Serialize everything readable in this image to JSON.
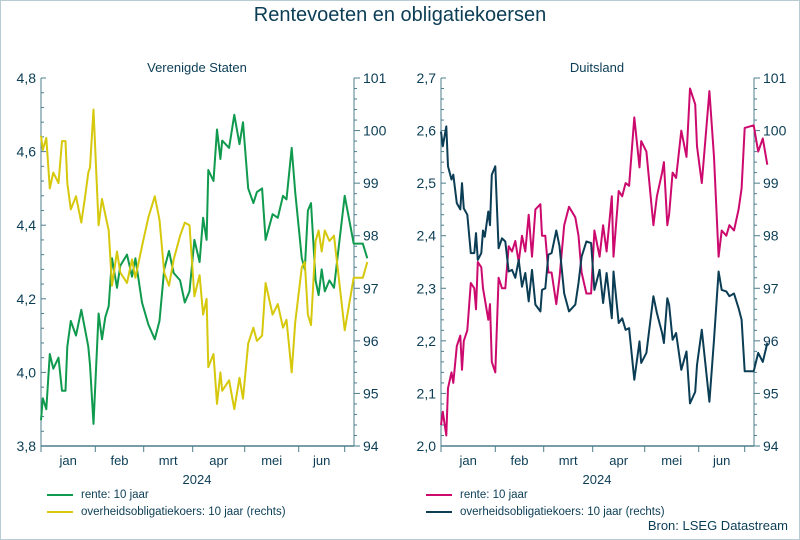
{
  "title": "Rentevoeten en obligatiekoersen",
  "source": "Bron: LSEG Datastream",
  "colors": {
    "us_rate": "#0f9a4e",
    "us_bond": "#d6c80c",
    "de_rate": "#cc0a6e",
    "de_bond": "#0b3d55",
    "axis": "#4d7d8c"
  },
  "chart_data": [
    {
      "type": "line",
      "title": "Verenigde Staten",
      "x_tick_labels": [
        "jan",
        "feb",
        "mrt",
        "apr",
        "mei",
        "jun"
      ],
      "x_year_label": "2024",
      "ylim_left": [
        3.8,
        4.8
      ],
      "yticks_left": [
        "3,8",
        "4,0",
        "4,2",
        "4,4",
        "4,6",
        "4,8"
      ],
      "ylim_right": [
        94,
        101
      ],
      "yticks_right": [
        "94",
        "95",
        "96",
        "97",
        "98",
        "99",
        "100",
        "101"
      ],
      "grid": false,
      "legend_position": "bottom-left",
      "x": [
        "2024-01-01",
        "2024-01-02",
        "2024-01-04",
        "2024-01-06",
        "2024-01-08",
        "2024-01-11",
        "2024-01-13",
        "2024-01-15",
        "2024-01-16",
        "2024-01-18",
        "2024-01-21",
        "2024-01-24",
        "2024-01-26",
        "2024-01-28",
        "2024-01-29",
        "2024-01-31",
        "2024-02-03",
        "2024-02-05",
        "2024-02-07",
        "2024-02-09",
        "2024-02-11",
        "2024-02-14",
        "2024-02-16",
        "2024-02-20",
        "2024-02-23",
        "2024-02-25",
        "2024-02-29",
        "2024-03-04",
        "2024-03-08",
        "2024-03-11",
        "2024-03-14",
        "2024-03-17",
        "2024-03-20",
        "2024-03-24",
        "2024-03-27",
        "2024-03-30",
        "2024-04-02",
        "2024-04-05",
        "2024-04-07",
        "2024-04-09",
        "2024-04-10",
        "2024-04-13",
        "2024-04-15",
        "2024-04-17",
        "2024-04-18",
        "2024-04-22",
        "2024-04-25",
        "2024-04-28",
        "2024-04-30",
        "2024-05-03",
        "2024-05-06",
        "2024-05-08",
        "2024-05-11",
        "2024-05-13",
        "2024-05-17",
        "2024-05-20",
        "2024-05-23",
        "2024-05-25",
        "2024-05-28",
        "2024-05-30",
        "2024-06-03",
        "2024-06-05",
        "2024-06-07",
        "2024-06-09",
        "2024-06-12",
        "2024-06-14",
        "2024-06-16",
        "2024-06-18",
        "2024-06-21",
        "2024-06-24",
        "2024-06-26",
        "2024-07-01",
        "2024-07-03",
        "2024-07-05",
        "2024-07-06"
      ],
      "series": [
        {
          "name": "rente: 10 jaar",
          "axis": "left",
          "color_key": "us_rate",
          "values": [
            3.87,
            3.93,
            3.9,
            4.05,
            4.01,
            4.04,
            3.95,
            3.95,
            4.07,
            4.14,
            4.1,
            4.17,
            4.12,
            4.07,
            4.02,
            3.86,
            4.16,
            4.09,
            4.15,
            4.18,
            4.31,
            4.23,
            4.29,
            4.32,
            4.26,
            4.31,
            4.19,
            4.13,
            4.09,
            4.14,
            4.28,
            4.33,
            4.27,
            4.25,
            4.19,
            4.22,
            4.36,
            4.3,
            4.42,
            4.36,
            4.55,
            4.52,
            4.66,
            4.58,
            4.63,
            4.61,
            4.7,
            4.62,
            4.68,
            4.5,
            4.46,
            4.49,
            4.5,
            4.36,
            4.43,
            4.42,
            4.48,
            4.47,
            4.61,
            4.49,
            4.31,
            4.28,
            4.44,
            4.46,
            4.25,
            4.21,
            4.28,
            4.22,
            4.25,
            4.23,
            4.3,
            4.48,
            4.35,
            4.35,
            4.31
          ]
        },
        {
          "name": "overheidsobligatiekoers: 10 jaar (rechts)",
          "axis": "right",
          "color_key": "us_bond",
          "values": [
            99.9,
            99.63,
            99.86,
            98.9,
            99.2,
            99.0,
            99.8,
            99.8,
            99.0,
            98.5,
            98.75,
            98.25,
            98.7,
            99.2,
            99.3,
            100.4,
            98.2,
            98.7,
            98.4,
            98.1,
            97.05,
            97.7,
            97.3,
            97.1,
            97.55,
            97.2,
            97.8,
            98.35,
            98.75,
            98.3,
            97.3,
            97.05,
            97.55,
            98.0,
            98.25,
            98.2,
            96.85,
            97.25,
            96.5,
            96.8,
            95.5,
            95.75,
            94.8,
            95.4,
            95.05,
            95.25,
            94.7,
            95.3,
            94.9,
            95.95,
            96.25,
            96.0,
            96.1,
            97.1,
            96.5,
            96.7,
            96.25,
            96.4,
            95.4,
            96.35,
            97.4,
            97.5,
            96.5,
            96.3,
            97.9,
            98.1,
            97.7,
            98.1,
            97.9,
            98.0,
            97.5,
            96.2,
            97.2,
            97.2,
            97.5
          ]
        }
      ]
    },
    {
      "type": "line",
      "title": "Duitsland",
      "x_tick_labels": [
        "jan",
        "feb",
        "mrt",
        "apr",
        "mei",
        "jun"
      ],
      "x_year_label": "2024",
      "ylim_left": [
        2.0,
        2.7
      ],
      "yticks_left": [
        "2,0",
        "2,1",
        "2,2",
        "2,3",
        "2,4",
        "2,5",
        "2,6",
        "2,7"
      ],
      "ylim_right": [
        94,
        101
      ],
      "yticks_right": [
        "94",
        "95",
        "96",
        "97",
        "98",
        "99",
        "100",
        "101"
      ],
      "grid": false,
      "legend_position": "bottom-left",
      "x": [
        "2024-01-01",
        "2024-01-02",
        "2024-01-04",
        "2024-01-05",
        "2024-01-07",
        "2024-01-08",
        "2024-01-10",
        "2024-01-12",
        "2024-01-13",
        "2024-01-14",
        "2024-01-16",
        "2024-01-18",
        "2024-01-20",
        "2024-01-21",
        "2024-01-22",
        "2024-01-24",
        "2024-01-25",
        "2024-01-26",
        "2024-01-28",
        "2024-01-29",
        "2024-01-30",
        "2024-02-01",
        "2024-02-03",
        "2024-02-05",
        "2024-02-07",
        "2024-02-09",
        "2024-02-11",
        "2024-02-13",
        "2024-02-15",
        "2024-02-17",
        "2024-02-19",
        "2024-02-21",
        "2024-02-23",
        "2024-02-25",
        "2024-02-28",
        "2024-02-29",
        "2024-03-02",
        "2024-03-04",
        "2024-03-06",
        "2024-03-09",
        "2024-03-11",
        "2024-03-14",
        "2024-03-17",
        "2024-03-21",
        "2024-03-23",
        "2024-03-25",
        "2024-03-28",
        "2024-03-31",
        "2024-04-02",
        "2024-04-05",
        "2024-04-07",
        "2024-04-09",
        "2024-04-12",
        "2024-04-13",
        "2024-04-16",
        "2024-04-18",
        "2024-04-20",
        "2024-04-22",
        "2024-04-25",
        "2024-04-28",
        "2024-04-29",
        "2024-05-02",
        "2024-05-06",
        "2024-05-08",
        "2024-05-11",
        "2024-05-12",
        "2024-05-14",
        "2024-05-15",
        "2024-05-17",
        "2024-05-19",
        "2024-05-22",
        "2024-05-25",
        "2024-05-27",
        "2024-05-30",
        "2024-05-31",
        "2024-06-03",
        "2024-06-08",
        "2024-06-11",
        "2024-06-14",
        "2024-06-16",
        "2024-06-19",
        "2024-06-21",
        "2024-06-24",
        "2024-06-27",
        "2024-06-29",
        "2024-07-01",
        "2024-07-03",
        "2024-07-04",
        "2024-07-05",
        "2024-07-06"
      ],
      "series": [
        {
          "name": "rente: 10 jaar",
          "axis": "left",
          "color_key": "de_rate",
          "values": [
            2.04,
            2.065,
            2.02,
            2.11,
            2.14,
            2.12,
            2.19,
            2.21,
            2.145,
            2.2,
            2.22,
            2.31,
            2.3,
            2.26,
            2.35,
            2.34,
            2.3,
            2.28,
            2.24,
            2.27,
            2.16,
            2.14,
            2.32,
            2.3,
            2.3,
            2.38,
            2.37,
            2.39,
            2.35,
            2.4,
            2.37,
            2.44,
            2.36,
            2.45,
            2.46,
            2.4,
            2.4,
            2.33,
            2.33,
            2.27,
            2.32,
            2.42,
            2.455,
            2.435,
            2.4,
            2.33,
            2.29,
            2.29,
            2.41,
            2.36,
            2.42,
            2.37,
            2.475,
            2.36,
            2.485,
            2.475,
            2.5,
            2.495,
            2.625,
            2.53,
            2.58,
            2.56,
            2.42,
            2.475,
            2.52,
            2.54,
            2.42,
            2.44,
            2.52,
            2.51,
            2.6,
            2.55,
            2.68,
            2.65,
            2.57,
            2.5,
            2.675,
            2.55,
            2.36,
            2.41,
            2.4,
            2.42,
            2.41,
            2.45,
            2.49,
            2.605,
            2.61,
            2.56,
            2.585,
            2.535
          ]
        },
        {
          "name": "overheidsobligatiekoers: 10 jaar (rechts)",
          "axis": "right",
          "color_key": "de_bond",
          "values": [
            99.98,
            99.7,
            100.08,
            99.32,
            99.07,
            99.16,
            98.62,
            98.5,
            99.0,
            98.52,
            98.4,
            97.67,
            97.67,
            98.05,
            97.54,
            97.67,
            98.1,
            97.98,
            98.46,
            98.2,
            99.16,
            99.32,
            97.76,
            97.95,
            97.89,
            97.32,
            97.35,
            97.2,
            97.54,
            97.03,
            97.29,
            96.75,
            97.35,
            96.69,
            96.56,
            96.97,
            97.0,
            97.64,
            97.67,
            98.1,
            97.8,
            96.9,
            96.56,
            96.69,
            97.1,
            97.6,
            97.89,
            97.86,
            96.97,
            97.35,
            96.72,
            97.29,
            96.43,
            97.32,
            96.34,
            96.43,
            96.21,
            96.24,
            95.26,
            95.99,
            95.58,
            95.77,
            96.85,
            96.53,
            96.15,
            95.96,
            96.81,
            96.69,
            96.02,
            96.15,
            95.45,
            95.8,
            94.81,
            95.03,
            95.54,
            96.21,
            94.84,
            96.02,
            97.32,
            96.97,
            96.94,
            96.85,
            96.9,
            96.62,
            96.4,
            95.42,
            95.42,
            95.77,
            95.6,
            95.96
          ]
        }
      ]
    }
  ]
}
